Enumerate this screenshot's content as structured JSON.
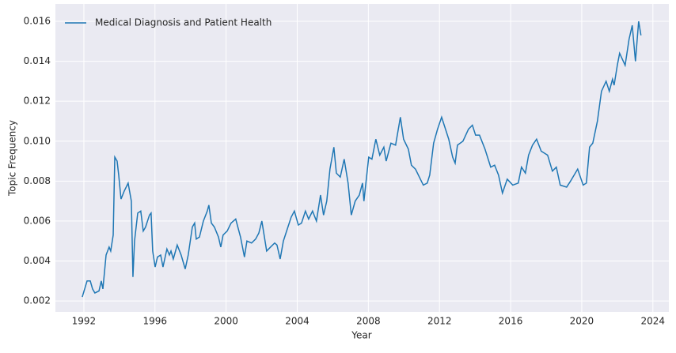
{
  "chart_data": {
    "type": "line",
    "xlabel": "Year",
    "ylabel": "Topic Frequency",
    "x": [
      1991.91,
      1992.18,
      1992.36,
      1992.49,
      1992.62,
      1992.85,
      1992.98,
      1993.07,
      1993.25,
      1993.42,
      1993.51,
      1993.65,
      1993.74,
      1993.87,
      1993.96,
      1994.09,
      1994.27,
      1994.49,
      1994.67,
      1994.76,
      1994.85,
      1995.03,
      1995.2,
      1995.34,
      1995.47,
      1995.69,
      1995.78,
      1995.87,
      1996.01,
      1996.14,
      1996.32,
      1996.45,
      1996.67,
      1996.81,
      1996.9,
      1997.03,
      1997.25,
      1997.47,
      1997.7,
      1997.87,
      1998.1,
      1998.23,
      1998.32,
      1998.5,
      1998.72,
      1998.94,
      1999.03,
      1999.17,
      1999.34,
      1999.57,
      1999.7,
      1999.83,
      2000.06,
      2000.28,
      2000.54,
      2000.81,
      2001.03,
      2001.17,
      2001.43,
      2001.66,
      2001.84,
      2002.01,
      2002.28,
      2002.5,
      2002.73,
      2002.86,
      2003.04,
      2003.22,
      2003.44,
      2003.66,
      2003.84,
      2004.06,
      2004.24,
      2004.46,
      2004.64,
      2004.86,
      2005.08,
      2005.31,
      2005.48,
      2005.66,
      2005.84,
      2006.06,
      2006.2,
      2006.42,
      2006.64,
      2006.86,
      2007.04,
      2007.26,
      2007.49,
      2007.67,
      2007.75,
      2008.02,
      2008.2,
      2008.42,
      2008.64,
      2008.87,
      2009.0,
      2009.27,
      2009.53,
      2009.8,
      2009.98,
      2010.25,
      2010.42,
      2010.65,
      2010.87,
      2011.09,
      2011.31,
      2011.45,
      2011.67,
      2011.89,
      2012.12,
      2012.52,
      2012.74,
      2012.88,
      2013.01,
      2013.32,
      2013.63,
      2013.85,
      2014.03,
      2014.25,
      2014.56,
      2014.88,
      2015.1,
      2015.32,
      2015.54,
      2015.81,
      2016.12,
      2016.43,
      2016.61,
      2016.83,
      2017.01,
      2017.23,
      2017.46,
      2017.72,
      2018.08,
      2018.35,
      2018.57,
      2018.79,
      2019.15,
      2019.37,
      2019.77,
      2020.08,
      2020.26,
      2020.44,
      2020.62,
      2020.88,
      2021.11,
      2021.37,
      2021.55,
      2021.73,
      2021.82,
      2022.0,
      2022.13,
      2022.44,
      2022.66,
      2022.84,
      2023.02,
      2023.2,
      2023.33
    ],
    "series": [
      {
        "name": "Medical Diagnosis and Patient Health",
        "color": "#1f77b4",
        "values": [
          0.0022,
          0.003,
          0.003,
          0.0026,
          0.0024,
          0.0025,
          0.003,
          0.0026,
          0.0043,
          0.0047,
          0.0045,
          0.0053,
          0.0092,
          0.009,
          0.0083,
          0.0071,
          0.0075,
          0.0079,
          0.007,
          0.0032,
          0.005,
          0.0064,
          0.0065,
          0.0055,
          0.0057,
          0.0063,
          0.0064,
          0.0045,
          0.0037,
          0.0042,
          0.0043,
          0.0037,
          0.0046,
          0.0043,
          0.0045,
          0.0041,
          0.0048,
          0.0043,
          0.0036,
          0.0043,
          0.0057,
          0.0059,
          0.0051,
          0.0052,
          0.006,
          0.0065,
          0.0068,
          0.0059,
          0.0057,
          0.0052,
          0.0047,
          0.0053,
          0.0055,
          0.0059,
          0.0061,
          0.0052,
          0.0042,
          0.005,
          0.0049,
          0.0051,
          0.0054,
          0.006,
          0.0045,
          0.0047,
          0.0049,
          0.0048,
          0.0041,
          0.005,
          0.0056,
          0.0062,
          0.0065,
          0.0058,
          0.0059,
          0.0065,
          0.0061,
          0.0065,
          0.006,
          0.0073,
          0.0063,
          0.007,
          0.0086,
          0.0097,
          0.0084,
          0.0082,
          0.0091,
          0.0079,
          0.0063,
          0.007,
          0.0073,
          0.0079,
          0.007,
          0.0092,
          0.0091,
          0.0101,
          0.0093,
          0.0097,
          0.009,
          0.0099,
          0.0098,
          0.0112,
          0.0101,
          0.0096,
          0.0088,
          0.0086,
          0.0082,
          0.0078,
          0.0079,
          0.0083,
          0.0099,
          0.0106,
          0.0112,
          0.0101,
          0.0092,
          0.0089,
          0.0098,
          0.01,
          0.0106,
          0.0108,
          0.0103,
          0.0103,
          0.0096,
          0.0087,
          0.0088,
          0.0083,
          0.0074,
          0.0081,
          0.0078,
          0.0079,
          0.0087,
          0.0084,
          0.0093,
          0.0098,
          0.0101,
          0.0095,
          0.0093,
          0.0085,
          0.0087,
          0.0078,
          0.0077,
          0.008,
          0.0086,
          0.0078,
          0.0079,
          0.0097,
          0.0099,
          0.011,
          0.0125,
          0.013,
          0.0125,
          0.0131,
          0.0128,
          0.0138,
          0.0144,
          0.0138,
          0.0151,
          0.0158,
          0.014,
          0.016,
          0.0153
        ]
      }
    ],
    "xlim": [
      1990.4,
      2024.9
    ],
    "xticks": [
      1992,
      1996,
      2000,
      2004,
      2008,
      2012,
      2016,
      2020,
      2024
    ],
    "ylim": [
      0.00145,
      0.01687
    ],
    "yticks": [
      0.002,
      0.004,
      0.006,
      0.008,
      {
        "value": 0.01,
        "label": "0.010"
      },
      0.012,
      0.014,
      0.016
    ],
    "grid": true,
    "legend": "upper left"
  }
}
